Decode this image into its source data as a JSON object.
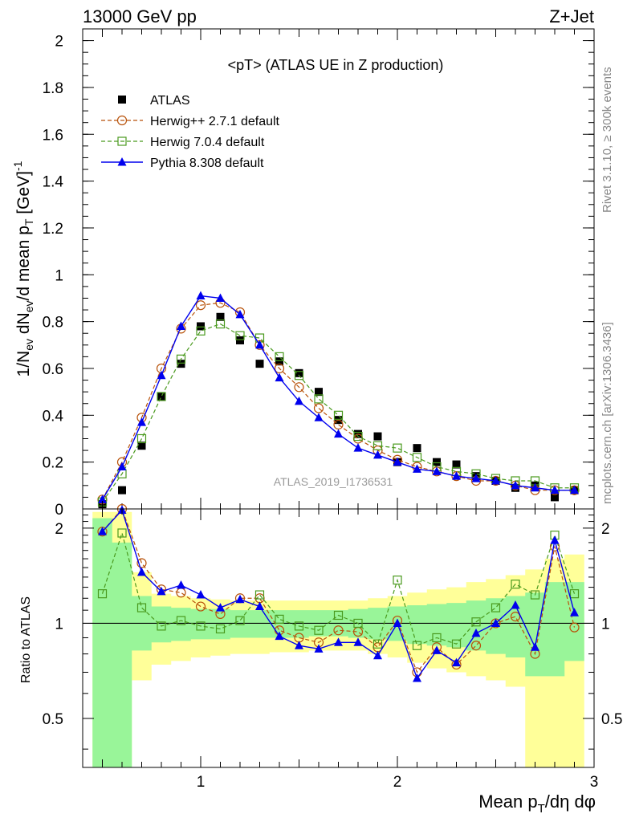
{
  "header": {
    "left": "13000 GeV pp",
    "right": "Z+Jet"
  },
  "side_labels": {
    "rivet": "Rivet 3.1.10, ≥ 300k events",
    "mcplots": "mcplots.cern.ch [arXiv:1306.3436]"
  },
  "chart_data": [
    {
      "type": "scatter",
      "title": "<pT> (ATLAS UE in Z production)",
      "watermark": "ATLAS_2019_I1736531",
      "xlabel": "Mean p_T/dη dφ",
      "ylabel": "1/N_ev dN_ev/d mean p_T [GeV]^-1",
      "xlim": [
        0.4,
        3.0
      ],
      "ylim": [
        0,
        2.05
      ],
      "yticks": [
        "0",
        "0.2",
        "0.4",
        "0.6",
        "0.8",
        "1",
        "1.2",
        "1.4",
        "1.6",
        "1.8",
        "2"
      ],
      "legend_position": "top-left",
      "x": [
        0.5,
        0.6,
        0.7,
        0.8,
        0.9,
        1.0,
        1.1,
        1.2,
        1.3,
        1.4,
        1.5,
        1.6,
        1.7,
        1.8,
        1.9,
        2.0,
        2.1,
        2.2,
        2.3,
        2.4,
        2.5,
        2.6,
        2.7,
        2.8,
        2.9
      ],
      "series": [
        {
          "name": "ATLAS",
          "color": "#000000",
          "style": "data",
          "values": [
            0.02,
            0.08,
            0.27,
            0.48,
            0.62,
            0.78,
            0.82,
            0.72,
            0.62,
            0.63,
            0.58,
            0.5,
            0.38,
            0.32,
            0.31,
            0.2,
            0.26,
            0.2,
            0.19,
            0.14,
            0.12,
            0.09,
            0.1,
            0.05,
            0.08
          ]
        },
        {
          "name": "Herwig++ 2.7.1 default",
          "color": "#b8520a",
          "style": "circle",
          "values": [
            0.04,
            0.2,
            0.39,
            0.6,
            0.77,
            0.87,
            0.88,
            0.84,
            0.7,
            0.6,
            0.52,
            0.43,
            0.36,
            0.3,
            0.25,
            0.21,
            0.18,
            0.16,
            0.14,
            0.12,
            0.12,
            0.1,
            0.08,
            0.08,
            0.08
          ]
        },
        {
          "name": "Herwig 7.0.4 default",
          "color": "#4a9a1e",
          "style": "square",
          "values": [
            0.03,
            0.15,
            0.3,
            0.48,
            0.64,
            0.76,
            0.79,
            0.74,
            0.73,
            0.65,
            0.57,
            0.47,
            0.4,
            0.31,
            0.27,
            0.26,
            0.22,
            0.18,
            0.16,
            0.15,
            0.13,
            0.12,
            0.12,
            0.09,
            0.09
          ]
        },
        {
          "name": "Pythia 8.308 default",
          "color": "#0000ee",
          "style": "triangle",
          "values": [
            0.04,
            0.18,
            0.37,
            0.57,
            0.78,
            0.91,
            0.9,
            0.83,
            0.7,
            0.56,
            0.46,
            0.39,
            0.32,
            0.26,
            0.23,
            0.2,
            0.17,
            0.16,
            0.14,
            0.13,
            0.12,
            0.1,
            0.09,
            0.08,
            0.08
          ]
        }
      ]
    },
    {
      "type": "scatter",
      "ylabel": "Ratio to ATLAS",
      "xlabel": "Mean p_T/dη dφ",
      "xlim": [
        0.4,
        3.0
      ],
      "ylim": [
        0.35,
        2.3
      ],
      "ylog": true,
      "yticks": [
        "0.5",
        "1",
        "2"
      ],
      "xticks": [
        "1",
        "2",
        "3"
      ],
      "x": [
        0.5,
        0.6,
        0.7,
        0.8,
        0.9,
        1.0,
        1.1,
        1.2,
        1.3,
        1.4,
        1.5,
        1.6,
        1.7,
        1.8,
        1.9,
        2.0,
        2.1,
        2.2,
        2.3,
        2.4,
        2.5,
        2.6,
        2.7,
        2.8,
        2.9
      ],
      "bands": {
        "yellow_low": [
          0.3,
          0.3,
          0.66,
          0.74,
          0.76,
          0.78,
          0.79,
          0.8,
          0.8,
          0.81,
          0.81,
          0.82,
          0.82,
          0.82,
          0.8,
          0.78,
          0.75,
          0.72,
          0.7,
          0.68,
          0.66,
          0.63,
          0.3,
          0.3,
          0.3
        ],
        "yellow_high": [
          2.25,
          2.25,
          1.45,
          1.24,
          1.22,
          1.2,
          1.19,
          1.18,
          1.18,
          1.18,
          1.18,
          1.18,
          1.18,
          1.18,
          1.2,
          1.22,
          1.25,
          1.28,
          1.3,
          1.35,
          1.38,
          1.42,
          1.48,
          1.6,
          1.65
        ],
        "green_low": [
          0.3,
          0.3,
          0.82,
          0.87,
          0.88,
          0.89,
          0.89,
          0.9,
          0.9,
          0.9,
          0.9,
          0.91,
          0.91,
          0.9,
          0.89,
          0.88,
          0.86,
          0.85,
          0.84,
          0.82,
          0.8,
          0.78,
          0.68,
          0.68,
          0.76
        ],
        "green_high": [
          2.15,
          1.8,
          1.22,
          1.13,
          1.12,
          1.11,
          1.11,
          1.1,
          1.1,
          1.1,
          1.1,
          1.1,
          1.1,
          1.11,
          1.12,
          1.13,
          1.14,
          1.15,
          1.16,
          1.18,
          1.2,
          1.22,
          1.25,
          1.35,
          1.35
        ]
      },
      "series": [
        {
          "name": "ATLAS",
          "values": [
            1,
            1,
            1,
            1,
            1,
            1,
            1,
            1,
            1,
            1,
            1,
            1,
            1,
            1,
            1,
            1,
            1,
            1,
            1,
            1,
            1,
            1,
            1,
            1,
            1
          ]
        },
        {
          "name": "Herwig++ 2.7.1 default",
          "values": [
            1.95,
            2.3,
            1.55,
            1.28,
            1.25,
            1.13,
            1.07,
            1.2,
            1.2,
            0.95,
            0.9,
            0.87,
            0.95,
            0.94,
            0.84,
            1.02,
            0.7,
            0.84,
            0.74,
            0.85,
            1.0,
            1.05,
            0.8,
            1.75,
            0.97
          ]
        },
        {
          "name": "Herwig 7.0.4 default",
          "values": [
            1.24,
            1.93,
            1.12,
            0.98,
            1.02,
            0.98,
            0.96,
            1.02,
            1.23,
            1.03,
            0.98,
            0.95,
            1.06,
            1.0,
            0.86,
            1.37,
            0.85,
            0.9,
            0.86,
            1.01,
            1.12,
            1.33,
            1.23,
            1.9,
            1.24
          ]
        },
        {
          "name": "Pythia 8.308 default",
          "values": [
            1.95,
            2.28,
            1.45,
            1.26,
            1.32,
            1.23,
            1.12,
            1.19,
            1.13,
            0.91,
            0.85,
            0.83,
            0.87,
            0.87,
            0.79,
            1.0,
            0.67,
            0.82,
            0.75,
            0.93,
            1.0,
            1.14,
            0.84,
            1.83,
            1.08
          ]
        }
      ]
    }
  ]
}
